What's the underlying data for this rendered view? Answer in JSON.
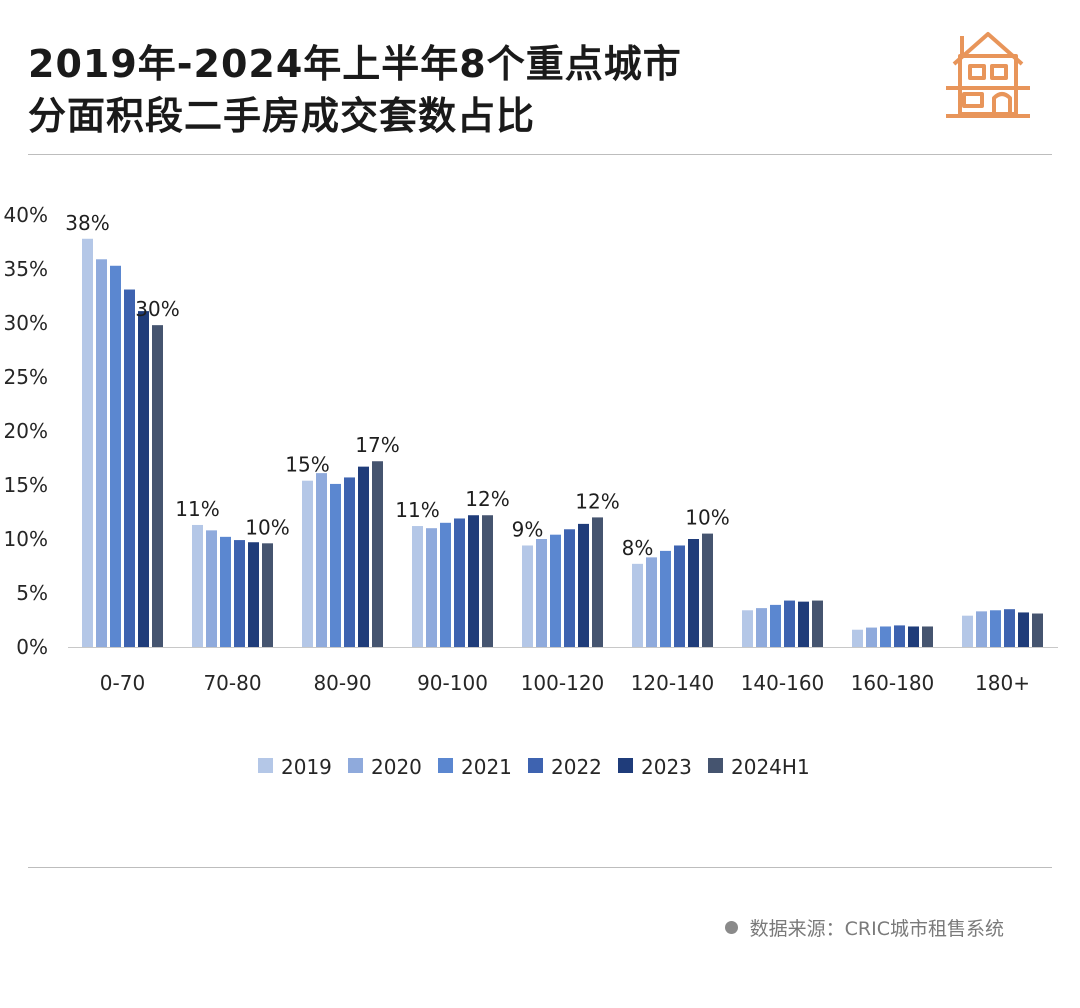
{
  "title": {
    "line1": "2019年-2024年上半年8个重点城市",
    "line2": "分面积段二手房成交套数占比"
  },
  "logo": {
    "icon": "house-icon",
    "color": "#e8955a"
  },
  "source": {
    "text": "数据来源：CRIC城市租售系统"
  },
  "chart_data": {
    "type": "bar",
    "categories": [
      "0-70",
      "70-80",
      "80-90",
      "90-100",
      "100-120",
      "120-140",
      "140-160",
      "160-180",
      "180+"
    ],
    "ylim": [
      0,
      40
    ],
    "yticks": [
      "0%",
      "5%",
      "10%",
      "15%",
      "20%",
      "25%",
      "30%",
      "35%",
      "40%"
    ],
    "grid": false,
    "legend_position": "bottom",
    "series": [
      {
        "name": "2019",
        "color": "#b4c7e7",
        "values": [
          37.8,
          11.3,
          15.4,
          11.2,
          9.4,
          7.7,
          3.4,
          1.6,
          2.9
        ]
      },
      {
        "name": "2020",
        "color": "#8faadc",
        "values": [
          35.9,
          10.8,
          16.1,
          11.0,
          10.0,
          8.3,
          3.6,
          1.8,
          3.3
        ]
      },
      {
        "name": "2021",
        "color": "#5b87d0",
        "values": [
          35.3,
          10.2,
          15.1,
          11.5,
          10.4,
          8.9,
          3.9,
          1.9,
          3.4
        ]
      },
      {
        "name": "2022",
        "color": "#3e63b0",
        "values": [
          33.1,
          9.9,
          15.7,
          11.9,
          10.9,
          9.4,
          4.3,
          2.0,
          3.5
        ]
      },
      {
        "name": "2023",
        "color": "#1f3c7a",
        "values": [
          31.1,
          9.7,
          16.7,
          12.2,
          11.4,
          10.0,
          4.2,
          1.9,
          3.2
        ]
      },
      {
        "name": "2024H1",
        "color": "#45546f",
        "values": [
          29.8,
          9.6,
          17.2,
          12.2,
          12.0,
          10.5,
          4.3,
          1.9,
          3.1
        ]
      }
    ],
    "data_labels": [
      {
        "category": 0,
        "series": 0,
        "text": "38%"
      },
      {
        "category": 0,
        "series": 5,
        "text": "30%"
      },
      {
        "category": 1,
        "series": 0,
        "text": "11%"
      },
      {
        "category": 1,
        "series": 5,
        "text": "10%"
      },
      {
        "category": 2,
        "series": 0,
        "text": "15%"
      },
      {
        "category": 2,
        "series": 5,
        "text": "17%"
      },
      {
        "category": 3,
        "series": 0,
        "text": "11%"
      },
      {
        "category": 3,
        "series": 5,
        "text": "12%"
      },
      {
        "category": 4,
        "series": 0,
        "text": "9%"
      },
      {
        "category": 4,
        "series": 5,
        "text": "12%"
      },
      {
        "category": 5,
        "series": 0,
        "text": "8%"
      },
      {
        "category": 5,
        "series": 5,
        "text": "10%"
      }
    ]
  }
}
